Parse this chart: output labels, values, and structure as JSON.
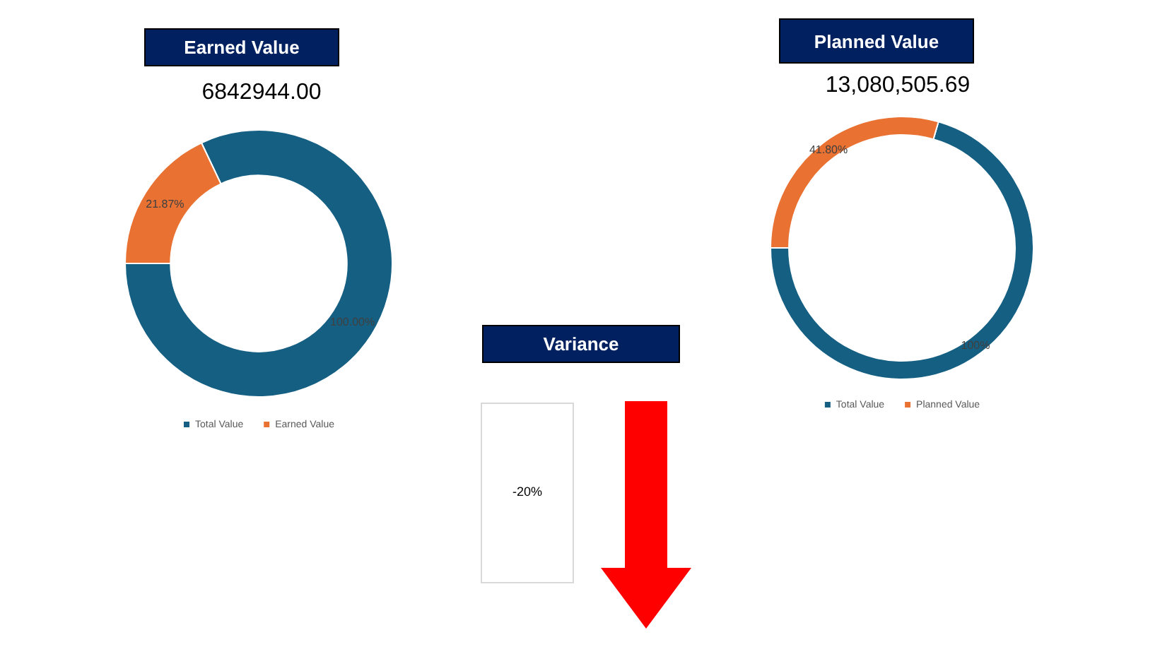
{
  "chart_data": [
    {
      "type": "donut",
      "title": "Earned Value",
      "subtitle": "6842944.00",
      "categories": [
        "Total Value",
        "Earned Value"
      ],
      "values": [
        100,
        21.87
      ],
      "value_labels": [
        "100.00%",
        "21.87%"
      ],
      "colors": [
        "#155f83",
        "#e97132"
      ],
      "legend": "bottom"
    },
    {
      "type": "donut",
      "title": "Planned Value",
      "subtitle": "13,080,505.69",
      "categories": [
        "Total Value",
        "Planned Value"
      ],
      "values": [
        100,
        41.8
      ],
      "value_labels": [
        "100%",
        "41.80%"
      ],
      "colors": [
        "#155f83",
        "#e97132"
      ],
      "legend": "bottom"
    },
    {
      "type": "other",
      "title": "Variance",
      "annotations": [
        "-20%"
      ]
    }
  ]
}
